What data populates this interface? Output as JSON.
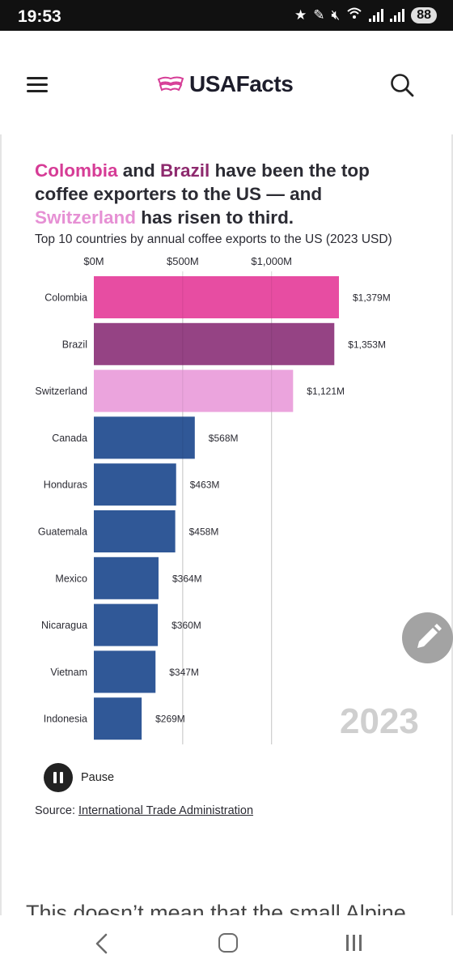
{
  "status_bar": {
    "time": "19:53",
    "battery": "88",
    "icons": [
      "star-icon",
      "pen-icon",
      "mute-icon",
      "wifi-icon",
      "signal-icon",
      "signal-icon"
    ]
  },
  "header": {
    "logo_text": "USAFacts",
    "icons": [
      "menu-icon",
      "usa-flag-logo",
      "search-icon"
    ]
  },
  "article": {
    "headline": {
      "part1": "Colombia",
      "part2": " and ",
      "part3": "Brazil",
      "part4": " have been the top coffee exporters to the US — and ",
      "part5": "Switzerland",
      "part6": " has risen to third."
    },
    "subtitle": "Top 10 countries by annual coffee exports to the US (2023 USD)",
    "year": "2023",
    "pause_label": "Pause",
    "source_label": "Source: ",
    "source_link": "International Trade Administration",
    "next_paragraph": "This doesn’t mean that the small Alpine"
  },
  "colors": {
    "colombia": "#e6479f",
    "brazil": "#923d80",
    "switzerland": "#eaa1dc",
    "other": "#295394"
  },
  "chart_data": {
    "type": "bar",
    "orientation": "horizontal",
    "title": "Top 10 countries by annual coffee exports to the US (2023 USD)",
    "categories": [
      "Colombia",
      "Brazil",
      "Switzerland",
      "Canada",
      "Honduras",
      "Guatemala",
      "Mexico",
      "Nicaragua",
      "Vietnam",
      "Indonesia"
    ],
    "values": [
      1379,
      1353,
      1121,
      568,
      463,
      458,
      364,
      360,
      347,
      269
    ],
    "value_labels": [
      "$1,379M",
      "$1,353M",
      "$1,121M",
      "$568M",
      "$463M",
      "$458M",
      "$364M",
      "$360M",
      "$347M",
      "$269M"
    ],
    "bar_colors": [
      "#e6479f",
      "#923d80",
      "#eaa1dc",
      "#295394",
      "#295394",
      "#295394",
      "#295394",
      "#295394",
      "#295394",
      "#295394"
    ],
    "x_ticks": [
      0,
      500,
      1000
    ],
    "x_tick_labels": [
      "$0M",
      "$500M",
      "$1,000M"
    ],
    "xlim": [
      0,
      1379
    ],
    "grid": true,
    "legend": "none"
  },
  "nav_bar": {
    "icons": [
      "back-icon",
      "home-icon",
      "recents-icon"
    ]
  }
}
